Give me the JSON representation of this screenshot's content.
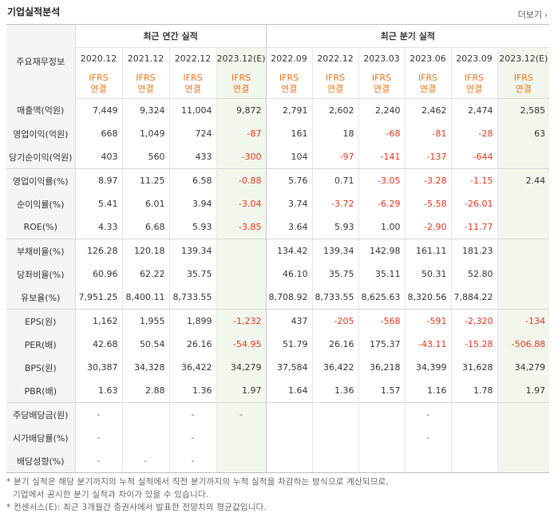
{
  "header": {
    "title": "기업실적분석",
    "more_label": "더보기"
  },
  "table": {
    "corner_label": "주요재무정보",
    "group_annual": "최근 연간 실적",
    "group_quarter": "최근 분기 실적",
    "periods": [
      "2020.12",
      "2021.12",
      "2022.12",
      "2023.12(E)",
      "2022.09",
      "2022.12",
      "2023.03",
      "2023.06",
      "2023.09",
      "2023.12(E)"
    ],
    "ifrs_top": "IFRS",
    "ifrs_bottom": "연결",
    "rows": [
      {
        "label": "매출액(억원)",
        "cells": [
          "7,449",
          "9,324",
          "11,004",
          "9,872",
          "2,791",
          "2,602",
          "2,240",
          "2,462",
          "2,474",
          "2,585"
        ]
      },
      {
        "label": "영업이익(억원)",
        "cells": [
          "668",
          "1,049",
          "724",
          "-87",
          "161",
          "18",
          "-68",
          "-81",
          "-28",
          "63"
        ]
      },
      {
        "label": "당기순이익(억원)",
        "cells": [
          "403",
          "560",
          "433",
          "-300",
          "104",
          "-97",
          "-141",
          "-137",
          "-644",
          ""
        ]
      },
      {
        "label": "영업이익률(%)",
        "cells": [
          "8.97",
          "11.25",
          "6.58",
          "-0.88",
          "5.76",
          "0.71",
          "-3.05",
          "-3.28",
          "-1.15",
          "2.44"
        ]
      },
      {
        "label": "순이익률(%)",
        "cells": [
          "5.41",
          "6.01",
          "3.94",
          "-3.04",
          "3.74",
          "-3.72",
          "-6.29",
          "-5.58",
          "-26.01",
          ""
        ]
      },
      {
        "label": "ROE(%)",
        "cells": [
          "4.33",
          "6.68",
          "5.93",
          "-3.85",
          "3.64",
          "5.93",
          "1.00",
          "-2.90",
          "-11.77",
          ""
        ]
      },
      {
        "label": "부채비율(%)",
        "cells": [
          "126.28",
          "120.18",
          "139.34",
          "",
          "134.42",
          "139.34",
          "142.98",
          "161.11",
          "181.23",
          ""
        ]
      },
      {
        "label": "당좌비율(%)",
        "cells": [
          "60.96",
          "62.22",
          "35.75",
          "",
          "46.10",
          "35.75",
          "35.11",
          "50.31",
          "52.80",
          ""
        ]
      },
      {
        "label": "유보율(%)",
        "cells": [
          "7,951.25",
          "8,400.11",
          "8,733.55",
          "",
          "8,708.92",
          "8,733.55",
          "8,625.63",
          "8,320.56",
          "7,884.22",
          ""
        ]
      },
      {
        "label": "EPS(원)",
        "cells": [
          "1,162",
          "1,955",
          "1,899",
          "-1,232",
          "437",
          "-205",
          "-568",
          "-591",
          "-2,320",
          "-134"
        ]
      },
      {
        "label": "PER(배)",
        "cells": [
          "42.68",
          "50.54",
          "26.16",
          "-54.95",
          "51.79",
          "26.16",
          "175.37",
          "-43.11",
          "-15.28",
          "-506.88"
        ]
      },
      {
        "label": "BPS(원)",
        "cells": [
          "30,387",
          "34,328",
          "36,422",
          "34,279",
          "37,584",
          "36,422",
          "36,218",
          "34,399",
          "31,628",
          "34,279"
        ]
      },
      {
        "label": "PBR(배)",
        "cells": [
          "1.63",
          "2.88",
          "1.36",
          "1.97",
          "1.64",
          "1.36",
          "1.57",
          "1.16",
          "1.78",
          "1.97"
        ]
      },
      {
        "label": "주당배당금(원)",
        "cells": [
          "-",
          "",
          "-",
          "-",
          "",
          "",
          "",
          "-",
          "",
          ""
        ]
      },
      {
        "label": "시가배당률(%)",
        "cells": [
          "-",
          "",
          "-",
          "",
          "",
          "",
          "",
          "-",
          "",
          ""
        ]
      },
      {
        "label": "배당성향(%)",
        "cells": [
          "-",
          "-",
          "-",
          "",
          "",
          "",
          "",
          "",
          "",
          ""
        ]
      }
    ]
  },
  "footnotes": {
    "note1a": "* 분기 실적은 해당 분기까지의 누적 실적에서 직전 분기까지의 누적 실적을 차감하는 방식으로 계산되므로,",
    "note1b": "기업에서 공시한 분기 실적과 차이가 있을 수 있습니다.",
    "note2": "* 컨센서스(E): 최근 3개월간 증권사에서 발표한 전망치의 평균값입니다."
  }
}
